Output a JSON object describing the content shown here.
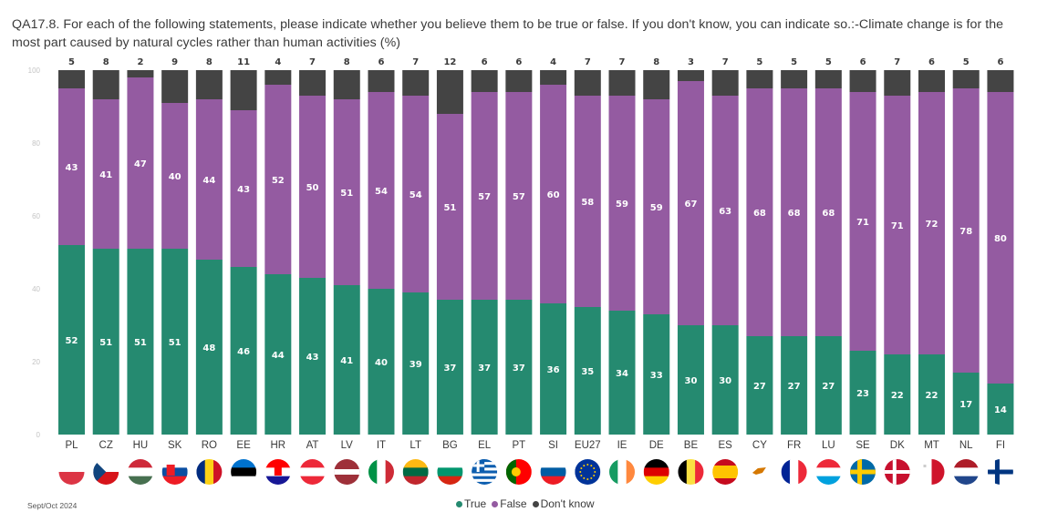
{
  "title": "QA17.8. For each of the following statements, please indicate whether you believe them to be true or false. If you don't know, you can indicate so.:-Climate change is for the most part caused by natural cycles rather than human activities (%)",
  "footer": {
    "date": "Sept/Oct 2024"
  },
  "colors": {
    "true": "#258a70",
    "false": "#945ba1",
    "dont_know": "#444444"
  },
  "chart_data": {
    "type": "bar",
    "stacked": true,
    "title": "QA17.8. For each of the following statements, please indicate whether you believe them to be true or false. If you don't know, you can indicate so.:-Climate change is for the most part caused by natural cycles rather than human activities (%)",
    "xlabel": "",
    "ylabel": "",
    "ylim": [
      0,
      100
    ],
    "yticks": [
      "0",
      "20",
      "40",
      "60",
      "80",
      "100"
    ],
    "grid": false,
    "legend_position": "bottom-center",
    "categories": [
      "PL",
      "CZ",
      "HU",
      "SK",
      "RO",
      "EE",
      "HR",
      "AT",
      "LV",
      "IT",
      "LT",
      "BG",
      "EL",
      "PT",
      "SI",
      "EU27",
      "IE",
      "DE",
      "BE",
      "ES",
      "CY",
      "FR",
      "LU",
      "SE",
      "DK",
      "MT",
      "NL",
      "FI"
    ],
    "series": [
      {
        "name": "True",
        "color": "#258a70",
        "values": [
          52,
          51,
          51,
          51,
          48,
          46,
          44,
          43,
          41,
          40,
          39,
          37,
          37,
          37,
          36,
          35,
          34,
          33,
          30,
          30,
          27,
          27,
          27,
          23,
          22,
          22,
          17,
          14
        ]
      },
      {
        "name": "False",
        "color": "#945ba1",
        "values": [
          43,
          41,
          47,
          40,
          44,
          43,
          52,
          50,
          51,
          54,
          54,
          51,
          57,
          57,
          60,
          58,
          59,
          59,
          67,
          63,
          68,
          68,
          68,
          71,
          71,
          72,
          78,
          80
        ]
      },
      {
        "name": "Don't know",
        "color": "#444444",
        "values": [
          5,
          8,
          2,
          9,
          8,
          11,
          4,
          7,
          8,
          6,
          7,
          12,
          6,
          6,
          4,
          7,
          7,
          8,
          3,
          7,
          5,
          5,
          5,
          6,
          7,
          6,
          5,
          6
        ]
      }
    ],
    "flags": [
      "flag-pl",
      "flag-cz",
      "flag-hu",
      "flag-sk",
      "flag-ro",
      "flag-ee",
      "flag-hr",
      "flag-at",
      "flag-lv",
      "flag-it",
      "flag-lt",
      "flag-bg",
      "flag-el",
      "flag-pt",
      "flag-si",
      "flag-eu27",
      "flag-ie",
      "flag-de",
      "flag-be",
      "flag-es",
      "flag-cy",
      "flag-fr",
      "flag-lu",
      "flag-se",
      "flag-dk",
      "flag-mt",
      "flag-nl",
      "flag-fi"
    ]
  },
  "legend": {
    "true": "True",
    "false": "False",
    "dont_know": "Don't know"
  }
}
